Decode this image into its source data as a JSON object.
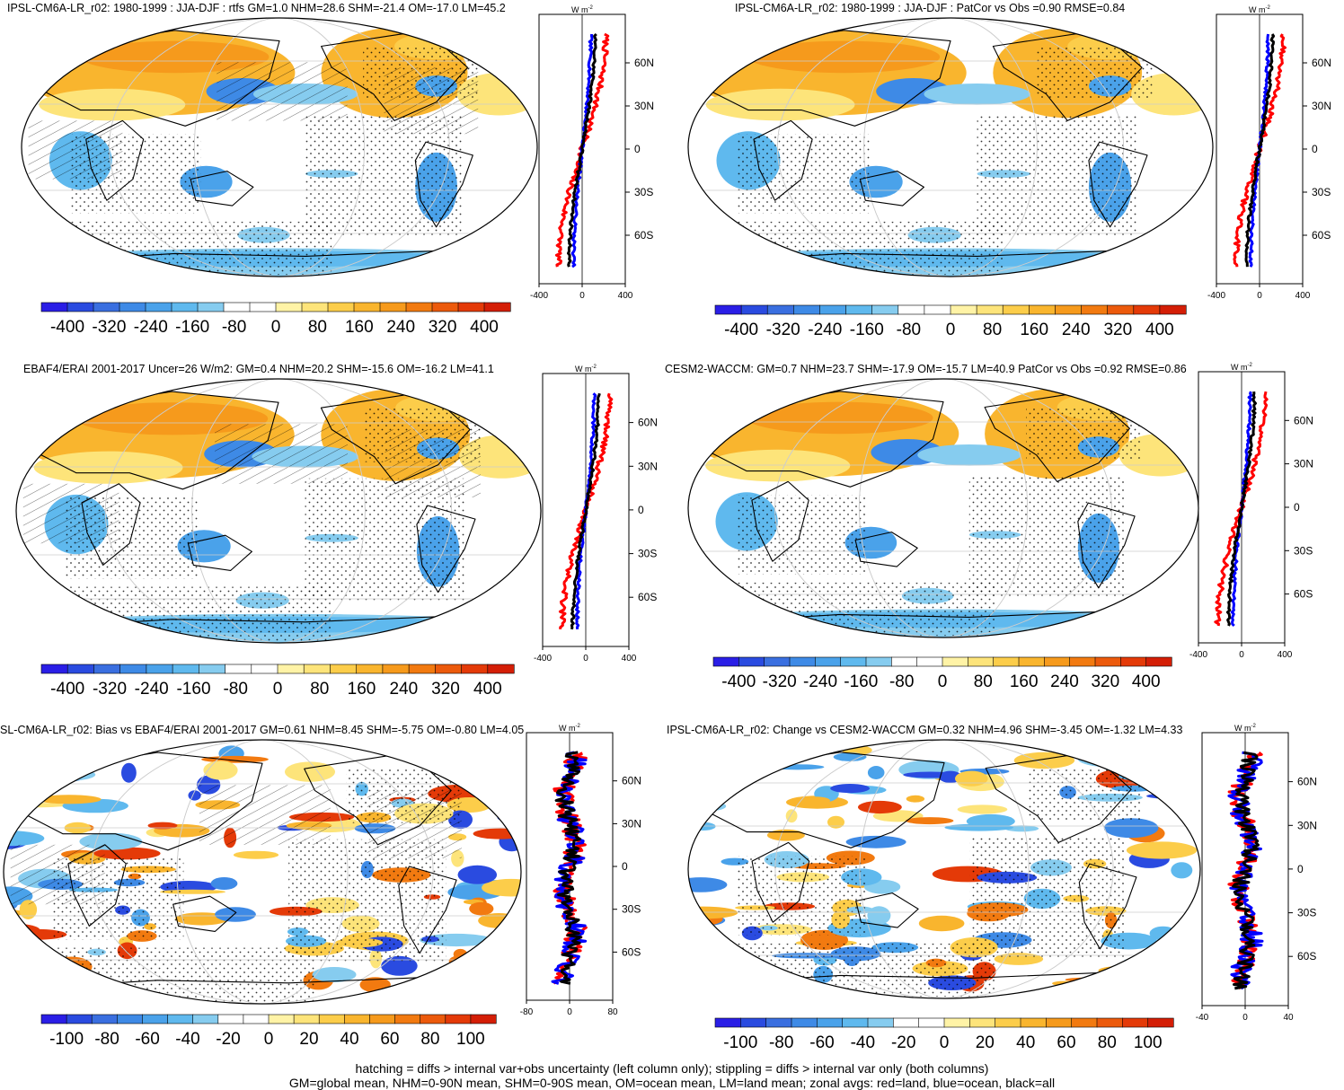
{
  "panels": [
    {
      "title": "IPSL-CM6A-LR_r02: 1980-1999 : JJA-DJF : rtfs GM=1.0 NHM=28.6 SHM=-21.4 OM=-17.0 LM=45.2",
      "zonal_unit": "W m",
      "zonal_unit_sup": "-2",
      "lat_labels": [
        "60N",
        "30N",
        "0",
        "30S",
        "60S"
      ],
      "x_ticks": [
        "-400",
        "0",
        "400"
      ],
      "cbar_labels": [
        "-400",
        "-320",
        "-240",
        "-160",
        "-80",
        "0",
        "80",
        "160",
        "240",
        "320",
        "400"
      ]
    },
    {
      "title": "IPSL-CM6A-LR_r02: 1980-1999 : JJA-DJF : PatCor vs Obs =0.90 RMSE=0.84",
      "zonal_unit": "W m",
      "zonal_unit_sup": "-2",
      "lat_labels": [
        "60N",
        "30N",
        "0",
        "30S",
        "60S"
      ],
      "x_ticks": [
        "-400",
        "0",
        "400"
      ],
      "cbar_labels": [
        "-400",
        "-320",
        "-240",
        "-160",
        "-80",
        "0",
        "80",
        "160",
        "240",
        "320",
        "400"
      ]
    },
    {
      "title": "EBAF4/ERAI 2001-2017 Uncer=26 W/m2: GM=0.4 NHM=20.2 SHM=-15.6 OM=-16.2 LM=41.1",
      "zonal_unit": "W m",
      "zonal_unit_sup": "-2",
      "lat_labels": [
        "60N",
        "30N",
        "0",
        "30S",
        "60S"
      ],
      "x_ticks": [
        "-400",
        "0",
        "400"
      ],
      "cbar_labels": [
        "-400",
        "-320",
        "-240",
        "-160",
        "-80",
        "0",
        "80",
        "160",
        "240",
        "320",
        "400"
      ]
    },
    {
      "title": "CESM2-WACCM: GM=0.7 NHM=23.7 SHM=-17.9 OM=-15.7 LM=40.9 PatCor vs Obs =0.92 RMSE=0.86",
      "zonal_unit": "W m",
      "zonal_unit_sup": "-2",
      "lat_labels": [
        "60N",
        "30N",
        "0",
        "30S",
        "60S"
      ],
      "x_ticks": [
        "-400",
        "0",
        "400"
      ],
      "cbar_labels": [
        "-400",
        "-320",
        "-240",
        "-160",
        "-80",
        "0",
        "80",
        "160",
        "240",
        "320",
        "400"
      ]
    },
    {
      "title": "SL-CM6A-LR_r02: Bias vs EBAF4/ERAI 2001-2017 GM=0.61 NHM=8.45 SHM=-5.75 OM=-0.80 LM=4.05",
      "zonal_unit": "W m",
      "zonal_unit_sup": "-2",
      "lat_labels": [
        "60N",
        "30N",
        "0",
        "30S",
        "60S"
      ],
      "x_ticks": [
        "-80",
        "0",
        "80"
      ],
      "cbar_labels": [
        "-100",
        "-80",
        "-60",
        "-40",
        "-20",
        "0",
        "20",
        "40",
        "60",
        "80",
        "100"
      ]
    },
    {
      "title": "IPSL-CM6A-LR_r02: Change vs CESM2-WACCM GM=0.32 NHM=4.96 SHM=-3.45 OM=-1.32 LM=4.33",
      "zonal_unit": "W m",
      "zonal_unit_sup": "-2",
      "lat_labels": [
        "60N",
        "30N",
        "0",
        "30S",
        "60S"
      ],
      "x_ticks": [
        "-40",
        "0",
        "40"
      ],
      "cbar_labels": [
        "-100",
        "-80",
        "-60",
        "-40",
        "-20",
        "0",
        "20",
        "40",
        "60",
        "80",
        "100"
      ]
    }
  ],
  "colorbar_colors": [
    "#2a1ee6",
    "#2a4be0",
    "#3a6fe0",
    "#3e8ae6",
    "#4aa2ea",
    "#5fb9ee",
    "#86ccef",
    "#ffffff",
    "#ffffff",
    "#fff3a6",
    "#fde47a",
    "#fccd4a",
    "#f9b52e",
    "#f69a1c",
    "#f27a10",
    "#ec5a0c",
    "#e43a08",
    "#d41e06"
  ],
  "line_colors": {
    "land": "#ff0000",
    "ocean": "#0000ff",
    "all": "#000000"
  },
  "footer": {
    "line1": "hatching = diffs > internal var+obs uncertainty (left column only); stippling = diffs > internal var only (both columns)",
    "line2": "GM=global mean, NHM=0-90N mean, SHM=0-90S mean, OM=ocean mean, LM=land mean; zonal avgs: red=land, blue=ocean, black=all"
  }
}
